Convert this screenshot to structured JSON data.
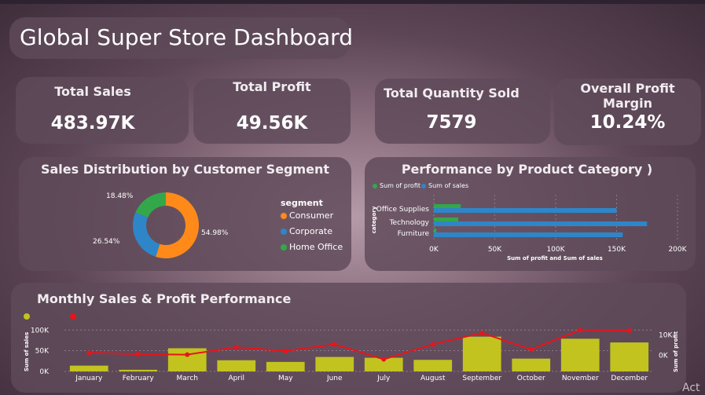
{
  "dashboard": {
    "title": "Global Super Store Dashboard"
  },
  "kpis": [
    {
      "label": "Total Sales",
      "value": "483.97K"
    },
    {
      "label": "Total Profit",
      "value": "49.56K"
    },
    {
      "label": "Total Quantity Sold",
      "value": "7579"
    },
    {
      "label": "Overall Profit Margin",
      "value": "10.24%"
    }
  ],
  "colors": {
    "consumer": "#ff8a1a",
    "corporate": "#2e86c9",
    "home_office": "#33a84a",
    "profit": "#33a84a",
    "sales": "#2e86c9",
    "bar": "#c2c31f",
    "line": "#e8141a"
  },
  "segment_panel": {
    "title": "Sales Distribution by Customer Segment",
    "legend_title": "segment"
  },
  "category_panel": {
    "title": "Performance by Product Category )",
    "x_axis_label": "Sum of profit and Sum of sales",
    "y_axis_label": "category"
  },
  "monthly_panel": {
    "title": "Monthly Sales & Profit Performance",
    "left_axis_label": "Sum of sales",
    "right_axis_label": "Sum of profit"
  },
  "watermark": "Act",
  "chart_data": [
    {
      "type": "pie",
      "title": "Sales Distribution by Customer Segment",
      "legend_title": "segment",
      "categories": [
        "Consumer",
        "Corporate",
        "Home Office"
      ],
      "values": [
        54.98,
        26.54,
        18.48
      ],
      "labels": [
        "54.98%",
        "26.54%",
        "18.48%"
      ]
    },
    {
      "type": "bar",
      "orientation": "horizontal",
      "title": "Performance by Product Category )",
      "categories": [
        "Office Supplies",
        "Technology",
        "Furniture"
      ],
      "series": [
        {
          "name": "Sum of profit",
          "values": [
            22000,
            20000,
            2000
          ]
        },
        {
          "name": "Sum of sales",
          "values": [
            150000,
            175000,
            155000
          ]
        }
      ],
      "xlabel": "Sum of profit and Sum of sales",
      "ylabel": "category",
      "xlim": [
        0,
        200000
      ],
      "xticks": [
        "0K",
        "50K",
        "100K",
        "150K",
        "200K"
      ]
    },
    {
      "type": "bar",
      "title": "Monthly Sales & Profit Performance",
      "categories": [
        "January",
        "February",
        "March",
        "April",
        "May",
        "June",
        "July",
        "August",
        "September",
        "October",
        "November",
        "December"
      ],
      "series": [
        {
          "name": "Sum of sales",
          "type": "bar",
          "axis": "left",
          "values": [
            14000,
            4000,
            56000,
            27000,
            23000,
            35000,
            33000,
            28000,
            84000,
            31000,
            79000,
            70000
          ]
        },
        {
          "name": "Sum of profit",
          "type": "line",
          "axis": "right",
          "values": [
            1200,
            550,
            300,
            4000,
            2100,
            5400,
            -2000,
            5400,
            11000,
            2900,
            12500,
            12200
          ]
        }
      ],
      "ylabel": "Sum of sales",
      "y2label": "Sum of profit",
      "ylim": [
        0,
        110000
      ],
      "y2lim": [
        -8000,
        14500
      ],
      "yticks": [
        "0K",
        "50K",
        "100K"
      ],
      "y2ticks": [
        "0K",
        "10K"
      ]
    }
  ]
}
